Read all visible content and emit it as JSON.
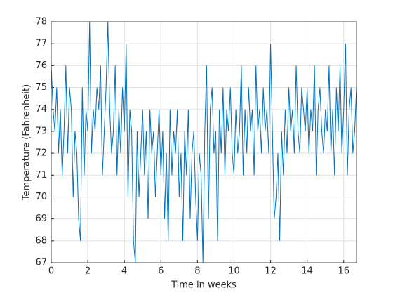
{
  "chart_data": {
    "type": "line",
    "x_label": "Time in weeks",
    "y_label": "Temperature (Fahrenheit)",
    "x": [
      0,
      0.1,
      0.2,
      0.3,
      0.4,
      0.5,
      0.6,
      0.7,
      0.8,
      0.9,
      1,
      1.1,
      1.2,
      1.3,
      1.4,
      1.5,
      1.6,
      1.7,
      1.8,
      1.9,
      2,
      2.1,
      2.2,
      2.3,
      2.4,
      2.5,
      2.6,
      2.7,
      2.8,
      2.9,
      3,
      3.1,
      3.2,
      3.3,
      3.4,
      3.5,
      3.6,
      3.7,
      3.8,
      3.9,
      4,
      4.1,
      4.2,
      4.3,
      4.4,
      4.5,
      4.6,
      4.7,
      4.8,
      4.9,
      5,
      5.1,
      5.2,
      5.3,
      5.4,
      5.5,
      5.6,
      5.7,
      5.8,
      5.9,
      6,
      6.1,
      6.2,
      6.3,
      6.4,
      6.5,
      6.6,
      6.7,
      6.8,
      6.9,
      7,
      7.1,
      7.2,
      7.3,
      7.4,
      7.5,
      7.6,
      7.7,
      7.8,
      7.9,
      8,
      8.1,
      8.2,
      8.3,
      8.4,
      8.5,
      8.6,
      8.7,
      8.8,
      8.9,
      9,
      9.1,
      9.2,
      9.3,
      9.4,
      9.5,
      9.6,
      9.7,
      9.8,
      9.9,
      10,
      10.1,
      10.2,
      10.3,
      10.4,
      10.5,
      10.6,
      10.7,
      10.8,
      10.9,
      11,
      11.1,
      11.2,
      11.3,
      11.4,
      11.5,
      11.6,
      11.7,
      11.8,
      11.9,
      12,
      12.1,
      12.2,
      12.3,
      12.4,
      12.5,
      12.6,
      12.7,
      12.8,
      12.9,
      13,
      13.1,
      13.2,
      13.3,
      13.4,
      13.5,
      13.6,
      13.7,
      13.8,
      13.9,
      14,
      14.1,
      14.2,
      14.3,
      14.4,
      14.5,
      14.6,
      14.7,
      14.8,
      14.9,
      15,
      15.1,
      15.2,
      15.3,
      15.4,
      15.5,
      15.6,
      15.7,
      15.8,
      15.9,
      16,
      16.1,
      16.2,
      16.3,
      16.4,
      16.5,
      16.6,
      16.7
    ],
    "series": [
      {
        "color": "#0072bd",
        "values": [
          76,
          74,
          73,
          75,
          72,
          74,
          71,
          73,
          76,
          72,
          75,
          74,
          70,
          73,
          72,
          69,
          68,
          75,
          71,
          74,
          73,
          78,
          72,
          74,
          73,
          75,
          74,
          76,
          71,
          73,
          75,
          78,
          74,
          72,
          73,
          76,
          71,
          74,
          72,
          75,
          73,
          77,
          70,
          74,
          73,
          68,
          67,
          73,
          70,
          72,
          74,
          71,
          73,
          69,
          74,
          72,
          73,
          70,
          72,
          74,
          71,
          73,
          69,
          72,
          68,
          74,
          71,
          73,
          72,
          74,
          70,
          72,
          68,
          73,
          71,
          74,
          69,
          72,
          73,
          70,
          68,
          72,
          71,
          67,
          73,
          76,
          69,
          74,
          75,
          72,
          73,
          68,
          74,
          72,
          75,
          71,
          74,
          73,
          75,
          72,
          71,
          74,
          72,
          73,
          76,
          71,
          74,
          72,
          75,
          73,
          74,
          71,
          76,
          73,
          74,
          72,
          75,
          73,
          74,
          72,
          77,
          73,
          69,
          70,
          72,
          68,
          73,
          71,
          74,
          72,
          75,
          73,
          74,
          72,
          76,
          73,
          72,
          75,
          74,
          73,
          75,
          72,
          74,
          73,
          76,
          71,
          74,
          75,
          73,
          72,
          74,
          73,
          76,
          72,
          74,
          71,
          75,
          73,
          76,
          72,
          74,
          77,
          71,
          74,
          75,
          72,
          73,
          75
        ]
      }
    ],
    "xlim": [
      0,
      16.7
    ],
    "ylim": [
      67,
      78
    ],
    "xticks": [
      0,
      2,
      4,
      6,
      8,
      10,
      12,
      14,
      16
    ],
    "yticks": [
      67,
      68,
      69,
      70,
      71,
      72,
      73,
      74,
      75,
      76,
      77,
      78
    ],
    "grid": true
  }
}
